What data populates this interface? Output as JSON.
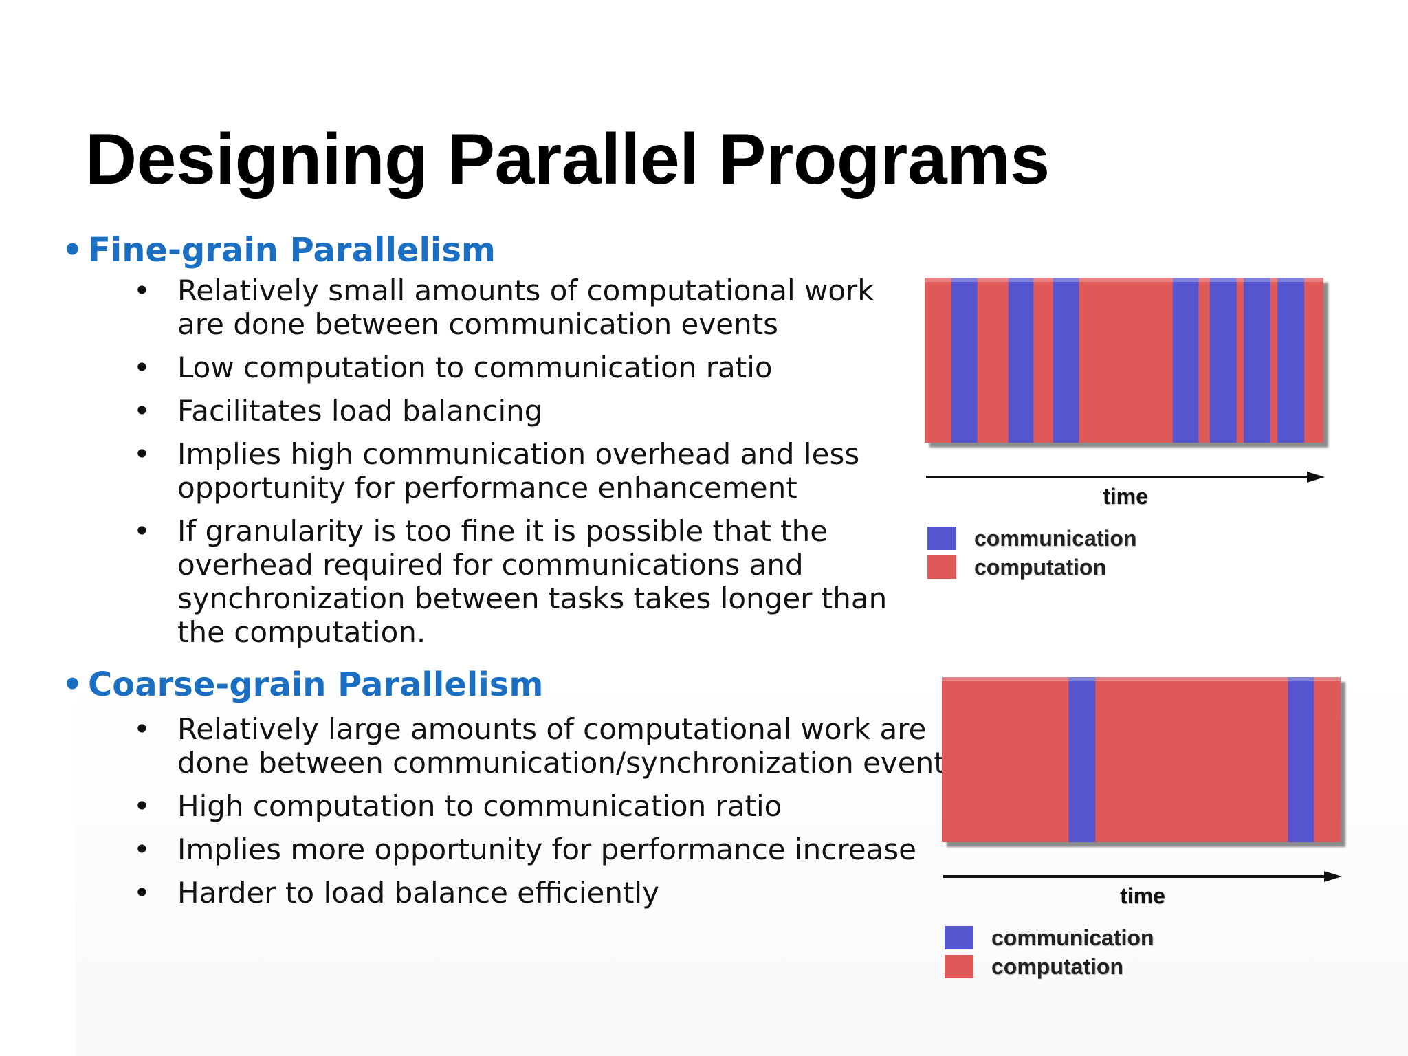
{
  "title": "Designing Parallel Programs",
  "sections": [
    {
      "heading": "Fine-grain Parallelism",
      "bullets": [
        "Relatively small amounts of computational work are done between communication events",
        "Low computation to communication ratio",
        "Facilitates load balancing",
        "Implies high communication overhead and less opportunity for performance enhancement",
        "If granularity is too fine it is possible that the overhead required for communications and synchronization between tasks takes longer than the computation."
      ]
    },
    {
      "heading": "Coarse-grain Parallelism",
      "bullets": [
        "Relatively large amounts of computational work are done between communication/synchronization events",
        "High computation to communication ratio",
        "Implies more opportunity for performance increase",
        "Harder to load balance efficiently"
      ]
    }
  ],
  "figures": [
    {
      "time_label": "time",
      "legend": [
        "communication",
        "computation"
      ],
      "communication_intervals": [
        [
          0.067,
          0.132
        ],
        [
          0.21,
          0.273
        ],
        [
          0.322,
          0.387
        ],
        [
          0.622,
          0.687
        ],
        [
          0.715,
          0.782
        ],
        [
          0.8,
          0.867
        ],
        [
          0.885,
          0.952
        ]
      ]
    },
    {
      "time_label": "time",
      "legend": [
        "communication",
        "computation"
      ],
      "communication_intervals": [
        [
          0.318,
          0.385
        ],
        [
          0.868,
          0.933
        ]
      ]
    }
  ],
  "colors": {
    "heading": "#1a6fc2",
    "communication": "#5555d0",
    "computation": "#e05959"
  }
}
